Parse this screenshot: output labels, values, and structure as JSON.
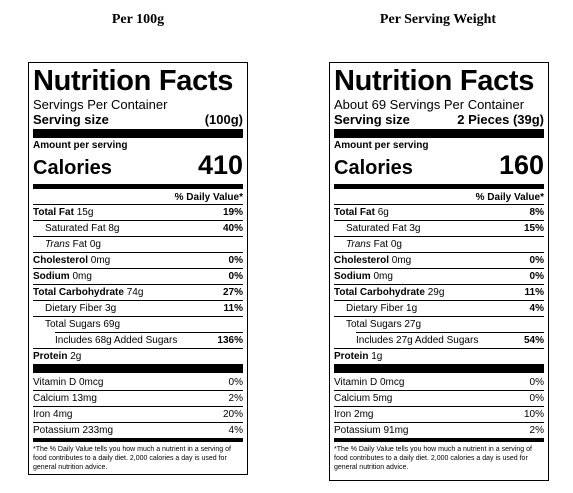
{
  "left": {
    "column_title": "Per 100g",
    "title": "Nutrition Facts",
    "servings": "Servings Per Container",
    "serving_size_label": "Serving size",
    "serving_size_value": "(100g)",
    "amount_per_serving": "Amount per serving",
    "calories_label": "Calories",
    "calories_value": "410",
    "dv_header": "% Daily Value*",
    "total_fat_label": "Total Fat",
    "total_fat_amount": " 15g",
    "total_fat_dv": "19%",
    "sat_fat_label": "Saturated Fat 8g",
    "sat_fat_dv": "40%",
    "trans_fat_italic": "Trans",
    "trans_fat_rest": " Fat 0g",
    "cholesterol_label": "Cholesterol",
    "cholesterol_amount": " 0mg",
    "cholesterol_dv": "0%",
    "sodium_label": "Sodium",
    "sodium_amount": " 0mg",
    "sodium_dv": "0%",
    "carb_label": "Total Carbohydrate",
    "carb_amount": " 74g",
    "carb_dv": "27%",
    "fiber_label": "Dietary Fiber 3g",
    "fiber_dv": "11%",
    "sugars_label": "Total Sugars 69g",
    "added_sugars_label": "Includes 68g Added Sugars",
    "added_sugars_dv": "136%",
    "protein_label": "Protein",
    "protein_amount": " 2g",
    "vitd_label": "Vitamin D 0mcg",
    "vitd_dv": "0%",
    "calcium_label": "Calcium 13mg",
    "calcium_dv": "2%",
    "iron_label": "Iron 4mg",
    "iron_dv": "20%",
    "potassium_label": "Potassium 233mg",
    "potassium_dv": "4%",
    "footnote": "*The % Daily Value tells you how much a nutrient in a serving of food contributes to a daily diet. 2,000 calories a day is used for general nutrition advice."
  },
  "right": {
    "column_title": "Per Serving Weight",
    "title": "Nutrition Facts",
    "servings": "About 69 Servings Per Container",
    "serving_size_label": "Serving size",
    "serving_size_value": "2 Pieces (39g)",
    "amount_per_serving": "Amount per serving",
    "calories_label": "Calories",
    "calories_value": "160",
    "dv_header": "% Daily Value*",
    "total_fat_label": "Total Fat",
    "total_fat_amount": " 6g",
    "total_fat_dv": "8%",
    "sat_fat_label": "Saturated Fat 3g",
    "sat_fat_dv": "15%",
    "trans_fat_italic": "Trans",
    "trans_fat_rest": " Fat 0g",
    "cholesterol_label": "Cholesterol",
    "cholesterol_amount": " 0mg",
    "cholesterol_dv": "0%",
    "sodium_label": "Sodium",
    "sodium_amount": " 0mg",
    "sodium_dv": "0%",
    "carb_label": "Total Carbohydrate",
    "carb_amount": " 29g",
    "carb_dv": "11%",
    "fiber_label": "Dietary Fiber 1g",
    "fiber_dv": "4%",
    "sugars_label": "Total Sugars 27g",
    "added_sugars_label": "Includes 27g Added Sugars",
    "added_sugars_dv": "54%",
    "protein_label": "Protein",
    "protein_amount": " 1g",
    "vitd_label": "Vitamin D 0mcg",
    "vitd_dv": "0%",
    "calcium_label": "Calcium 5mg",
    "calcium_dv": "0%",
    "iron_label": "Iron 2mg",
    "iron_dv": "10%",
    "potassium_label": "Potassium 91mg",
    "potassium_dv": "2%",
    "footnote": "*The % Daily Value tells you how much a nutrient in a serving of food contributes to a daily diet. 2,000 calories a day is used for general nutrition advice."
  }
}
